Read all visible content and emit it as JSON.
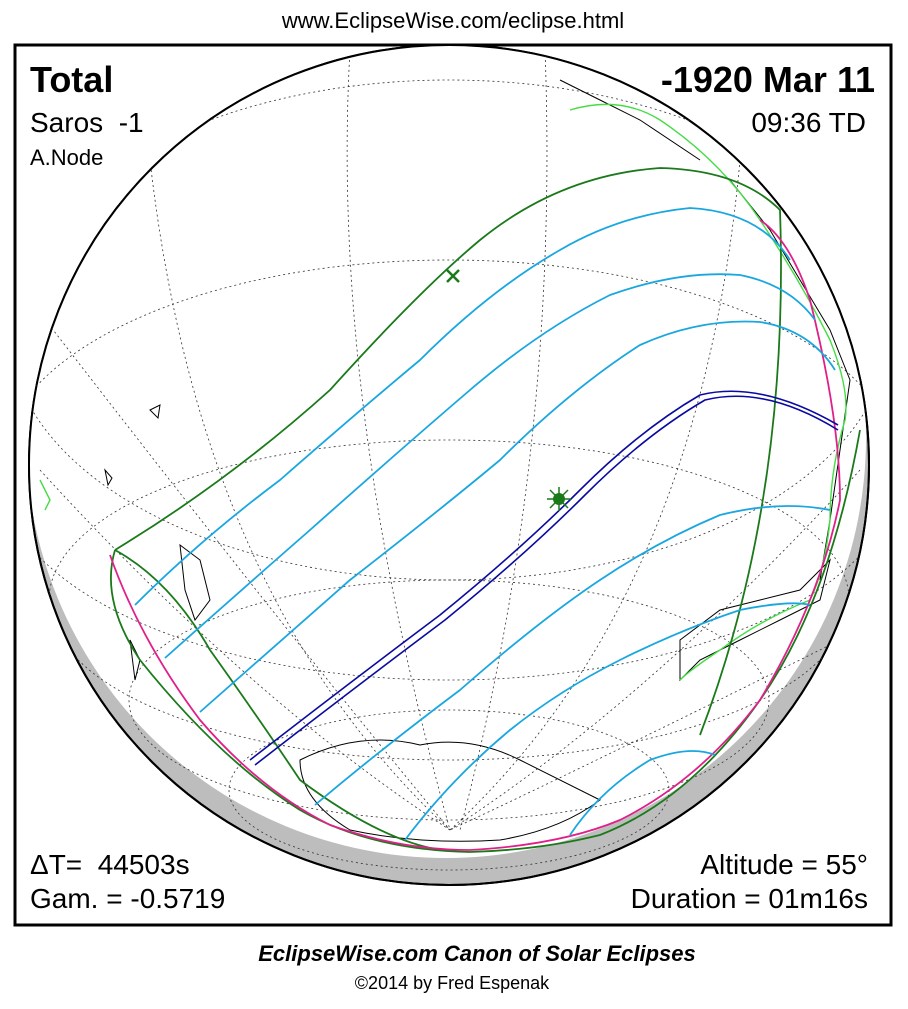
{
  "header": {
    "url": "www.EclipseWise.com/eclipse.html",
    "type": "Total",
    "date": "-1920 Mar 11",
    "saros": "Saros  -1",
    "time": "09:36 TD",
    "node": "A.Node"
  },
  "stats": {
    "delta_t": "ΔT=  44503s",
    "gamma": "Gam. = -0.5719",
    "altitude": "Altitude = 55°",
    "duration": "Duration = 01m16s"
  },
  "footer": {
    "title": "EclipseWise.com Canon of Solar Eclipses",
    "credit": "©2014 by Fred Espenak"
  }
}
